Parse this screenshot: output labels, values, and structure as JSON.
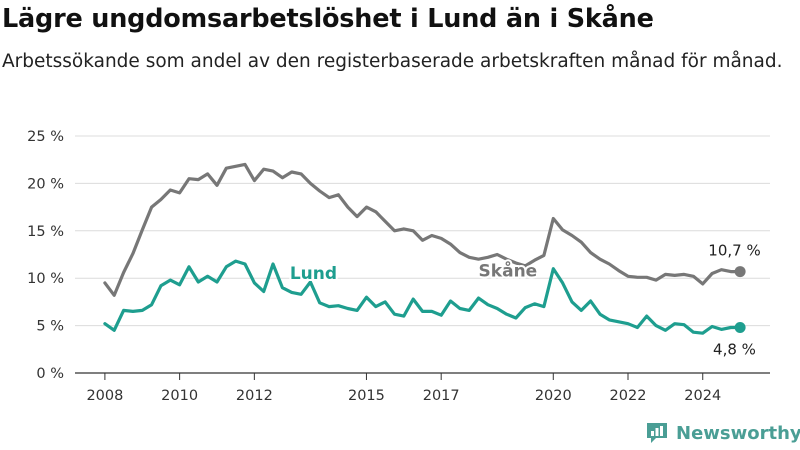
{
  "header": {
    "title": "Lägre ungdomsarbetslöshet i Lund än i Skåne",
    "subtitle": "Arbetssökande som andel av den registerbaserade arbetskraften månad för månad."
  },
  "brand": {
    "name": "Newsworthy",
    "icon": "bar-chart-logo-icon",
    "color": "#4a9e95"
  },
  "chart_data": {
    "type": "line",
    "title": "Lägre ungdomsarbetslöshet i Lund än i Skåne",
    "subtitle": "Arbetssökande som andel av den registerbaserade arbetskraften månad för månad.",
    "xlabel": "",
    "ylabel": "",
    "ylim": [
      0,
      25
    ],
    "xlim": [
      2007.2,
      2025.8
    ],
    "y_ticks": [
      0,
      5,
      10,
      15,
      20,
      25
    ],
    "y_tick_labels": [
      "0 %",
      "5 %",
      "10 %",
      "15 %",
      "20 %",
      "25 %"
    ],
    "x_ticks": [
      2008,
      2010,
      2012,
      2015,
      2017,
      2020,
      2022,
      2024
    ],
    "x_tick_labels": [
      "2008",
      "2010",
      "2012",
      "2015",
      "2017",
      "2020",
      "2022",
      "2024"
    ],
    "grid": "horizontal",
    "series": [
      {
        "name": "Skåne",
        "color": "#777777",
        "end_label": "10,7 %",
        "x": [
          2008.0,
          2008.25,
          2008.5,
          2008.75,
          2009.0,
          2009.25,
          2009.5,
          2009.75,
          2010.0,
          2010.25,
          2010.5,
          2010.75,
          2011.0,
          2011.25,
          2011.5,
          2011.75,
          2012.0,
          2012.25,
          2012.5,
          2012.75,
          2013.0,
          2013.25,
          2013.5,
          2013.75,
          2014.0,
          2014.25,
          2014.5,
          2014.75,
          2015.0,
          2015.25,
          2015.5,
          2015.75,
          2016.0,
          2016.25,
          2016.5,
          2016.75,
          2017.0,
          2017.25,
          2017.5,
          2017.75,
          2018.0,
          2018.25,
          2018.5,
          2018.75,
          2019.0,
          2019.25,
          2019.5,
          2019.75,
          2020.0,
          2020.25,
          2020.5,
          2020.75,
          2021.0,
          2021.25,
          2021.5,
          2021.75,
          2022.0,
          2022.25,
          2022.5,
          2022.75,
          2023.0,
          2023.25,
          2023.5,
          2023.75,
          2024.0,
          2024.25,
          2024.5,
          2024.75,
          2025.0
        ],
        "values": [
          9.5,
          8.2,
          10.6,
          12.6,
          15.1,
          17.5,
          18.3,
          19.3,
          19.0,
          20.5,
          20.4,
          21.0,
          19.8,
          21.6,
          21.8,
          22.0,
          20.3,
          21.5,
          21.3,
          20.6,
          21.2,
          21.0,
          20.0,
          19.2,
          18.5,
          18.8,
          17.5,
          16.5,
          17.5,
          17.0,
          16.0,
          15.0,
          15.2,
          15.0,
          14.0,
          14.5,
          14.2,
          13.6,
          12.7,
          12.2,
          12.0,
          12.2,
          12.5,
          12.0,
          11.6,
          11.3,
          11.9,
          12.4,
          16.3,
          15.1,
          14.5,
          13.8,
          12.7,
          12.0,
          11.5,
          10.8,
          10.2,
          10.1,
          10.1,
          9.8,
          10.4,
          10.3,
          10.4,
          10.2,
          9.4,
          10.5,
          10.9,
          10.7,
          10.7
        ]
      },
      {
        "name": "Lund",
        "color": "#1e9e8f",
        "end_label": "4,8 %",
        "x": [
          2008.0,
          2008.25,
          2008.5,
          2008.75,
          2009.0,
          2009.25,
          2009.5,
          2009.75,
          2010.0,
          2010.25,
          2010.5,
          2010.75,
          2011.0,
          2011.25,
          2011.5,
          2011.75,
          2012.0,
          2012.25,
          2012.5,
          2012.75,
          2013.0,
          2013.25,
          2013.5,
          2013.75,
          2014.0,
          2014.25,
          2014.5,
          2014.75,
          2015.0,
          2015.25,
          2015.5,
          2015.75,
          2016.0,
          2016.25,
          2016.5,
          2016.75,
          2017.0,
          2017.25,
          2017.5,
          2017.75,
          2018.0,
          2018.25,
          2018.5,
          2018.75,
          2019.0,
          2019.25,
          2019.5,
          2019.75,
          2020.0,
          2020.25,
          2020.5,
          2020.75,
          2021.0,
          2021.25,
          2021.5,
          2021.75,
          2022.0,
          2022.25,
          2022.5,
          2022.75,
          2023.0,
          2023.25,
          2023.5,
          2023.75,
          2024.0,
          2024.25,
          2024.5,
          2024.75,
          2025.0
        ],
        "values": [
          5.2,
          4.5,
          6.6,
          6.5,
          6.6,
          7.2,
          9.2,
          9.8,
          9.3,
          11.2,
          9.6,
          10.2,
          9.6,
          11.2,
          11.8,
          11.5,
          9.5,
          8.6,
          11.5,
          9.0,
          8.5,
          8.3,
          9.6,
          7.4,
          7.0,
          7.1,
          6.8,
          6.6,
          8.0,
          7.0,
          7.5,
          6.2,
          6.0,
          7.8,
          6.5,
          6.5,
          6.1,
          7.6,
          6.8,
          6.6,
          7.9,
          7.2,
          6.8,
          6.2,
          5.8,
          6.9,
          7.3,
          7.0,
          11.0,
          9.5,
          7.5,
          6.6,
          7.6,
          6.2,
          5.6,
          5.4,
          5.2,
          4.8,
          6.0,
          5.0,
          4.5,
          5.2,
          5.1,
          4.3,
          4.2,
          4.9,
          4.6,
          4.8,
          4.8
        ]
      }
    ]
  }
}
